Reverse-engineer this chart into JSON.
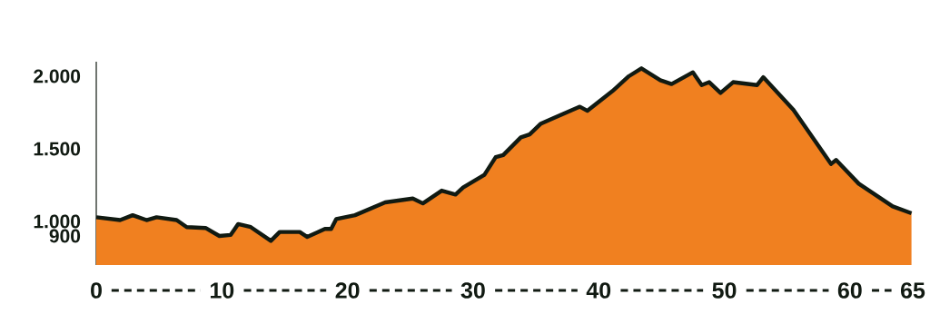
{
  "chart_data": {
    "type": "area",
    "x": [
      0,
      1.9,
      2.9,
      4.0,
      4.8,
      6.4,
      7.2,
      8.7,
      9.8,
      10.7,
      11.3,
      12.3,
      13.9,
      14.6,
      16.2,
      16.8,
      18.2,
      18.7,
      19.1,
      20.6,
      23.0,
      25.2,
      26.0,
      27.5,
      28.6,
      29.2,
      30.9,
      31.8,
      32.4,
      33.8,
      34.5,
      35.4,
      36.3,
      38.5,
      39.1,
      39.7,
      41.1,
      42.4,
      43.4,
      44.9,
      45.8,
      47.5,
      48.2,
      48.8,
      49.7,
      50.7,
      52.6,
      53.1,
      55.5,
      58.5,
      58.9,
      60.7,
      63.4,
      64.9
    ],
    "values": [
      1029,
      1009,
      1043,
      1009,
      1029,
      1009,
      961,
      955,
      900,
      907,
      982,
      961,
      866,
      927,
      927,
      893,
      948,
      948,
      1016,
      1043,
      1131,
      1158,
      1124,
      1212,
      1185,
      1233,
      1321,
      1443,
      1457,
      1579,
      1599,
      1674,
      1708,
      1790,
      1762,
      1803,
      1898,
      2000,
      2054,
      1973,
      1946,
      2027,
      1939,
      1959,
      1885,
      1959,
      1939,
      1993,
      1769,
      1396,
      1423,
      1260,
      1104,
      1056
    ],
    "color": "#f08020",
    "line_style": "solid",
    "xlim": [
      0,
      65
    ],
    "ylim": [
      700,
      2100
    ],
    "xticks": [
      0,
      10,
      20,
      30,
      40,
      50,
      60,
      65
    ],
    "yticks": [
      {
        "value": 900,
        "label": "900"
      },
      {
        "value": 1000,
        "label": "1.000"
      },
      {
        "value": 1500,
        "label": "1.500"
      },
      {
        "value": 2000,
        "label": "2.000"
      }
    ]
  }
}
